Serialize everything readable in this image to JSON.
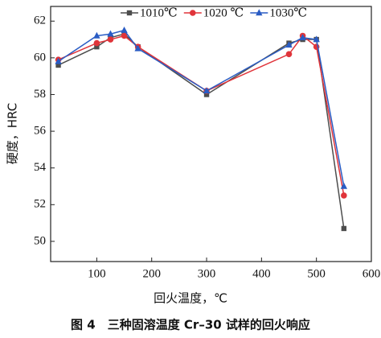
{
  "chart_data": {
    "type": "line",
    "caption": "图 4　三种固溶温度 Cr–30 试样的回火响应",
    "x_label": "回火温度，℃",
    "y_label": "硬度，HRC",
    "x": [
      30,
      100,
      125,
      150,
      175,
      300,
      450,
      475,
      500,
      550
    ],
    "series": [
      {
        "name": "1010℃",
        "color": "#4d4d4d",
        "marker": "square",
        "values": [
          59.6,
          60.6,
          61.1,
          61.3,
          60.6,
          58.0,
          60.8,
          61.0,
          61.0,
          50.7
        ]
      },
      {
        "name": "1020 ℃",
        "color": "#e0343a",
        "marker": "circle",
        "values": [
          59.9,
          60.8,
          61.0,
          61.2,
          60.6,
          58.2,
          60.2,
          61.2,
          60.6,
          52.5
        ]
      },
      {
        "name": "1030℃",
        "color": "#2a5cc4",
        "marker": "triangle",
        "values": [
          59.8,
          61.2,
          61.3,
          61.5,
          60.5,
          58.2,
          60.7,
          61.1,
          61.0,
          53.0
        ]
      }
    ],
    "xlim": [
      16,
      600
    ],
    "ylim": [
      48.9,
      62.8
    ],
    "xticks": [
      100,
      200,
      300,
      400,
      500,
      600
    ],
    "yticks": [
      50,
      52,
      54,
      56,
      58,
      60,
      62
    ],
    "legend": "top-right"
  }
}
